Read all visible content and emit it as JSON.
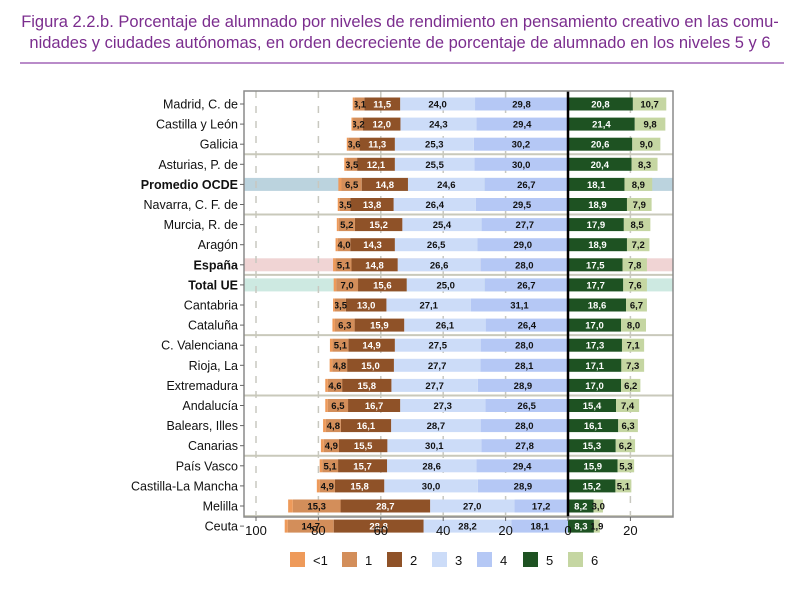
{
  "title_line1": "Figura 2.2.b. Porcentaje de alumnado por niveles de rendimiento en pensamiento creativo en las comu-",
  "title_line2": "nidades y ciudades autónomas, en orden decreciente de porcentaje de alumnado en los niveles 5 y 6",
  "chart_data": {
    "type": "bar",
    "orientation": "horizontal",
    "stacked": "diverging",
    "title": "Figura 2.2.b. Porcentaje de alumnado por niveles de rendimiento en pensamiento creativo en las comunidades y ciudades autónomas, en orden decreciente de porcentaje de alumnado en los niveles 5 y 6",
    "xlabel": "",
    "ylabel": "",
    "xlim": [
      -100,
      33
    ],
    "x_ticks": [
      -100,
      -80,
      -60,
      -40,
      -20,
      0,
      20
    ],
    "x_tick_labels": [
      "100",
      "80",
      "60",
      "40",
      "20",
      "0",
      "20"
    ],
    "grid": "vertical dashed",
    "legend_position": "bottom",
    "legend": [
      {
        "key": "lt1",
        "label": "<1",
        "color": "#EE9A5A",
        "side": "left"
      },
      {
        "key": "l1",
        "label": "1",
        "color": "#D38E5A",
        "side": "left"
      },
      {
        "key": "l2",
        "label": "2",
        "color": "#8F5228",
        "side": "left"
      },
      {
        "key": "l3",
        "label": "3",
        "color": "#CCDCF8",
        "side": "left"
      },
      {
        "key": "l4",
        "label": "4",
        "color": "#B5C8F5",
        "side": "left"
      },
      {
        "key": "l5",
        "label": "5",
        "color": "#1E5222",
        "side": "right"
      },
      {
        "key": "l6",
        "label": "6",
        "color": "#C5D6A2",
        "side": "right"
      }
    ],
    "categories": [
      "Madrid, C. de",
      "Castilla y León",
      "Galicia",
      "Asturias, P. de",
      "Promedio OCDE",
      "Navarra, C. F. de",
      "Murcia, R. de",
      "Aragón",
      "España",
      "Total UE",
      "Cantabria",
      "Cataluña",
      "C. Valenciana",
      "Rioja, La",
      "Extremadura",
      "Andalucía",
      "Balears, Illes",
      "Canarias",
      "País Vasco",
      "Castilla-La Mancha",
      "Melilla",
      "Ceuta"
    ],
    "bold_categories": [
      "Promedio OCDE",
      "España",
      "Total UE"
    ],
    "highlights": [
      {
        "category": "Promedio OCDE",
        "color": "#BBD3DE"
      },
      {
        "category": "España",
        "color": "#F0D4D4"
      },
      {
        "category": "Total UE",
        "color": "#CDE9E1"
      }
    ],
    "group_separators_after": [
      "Galicia",
      "Navarra, C. F. de",
      "España",
      "Cataluña",
      "Extremadura",
      "Canarias",
      "Melilla"
    ],
    "series": [
      {
        "name": "<1",
        "key": "lt1",
        "labeled": false,
        "values_estimated": true,
        "values": [
          0.6,
          0.5,
          0.5,
          0.6,
          1.0,
          0.6,
          0.6,
          0.7,
          0.8,
          0.8,
          0.6,
          0.8,
          0.8,
          0.8,
          0.8,
          0.8,
          0.9,
          0.9,
          0.8,
          0.9,
          1.5,
          1.0
        ]
      },
      {
        "name": "1",
        "key": "l1",
        "values": [
          3.1,
          3.2,
          3.6,
          3.5,
          6.5,
          3.5,
          5.2,
          4.0,
          5.1,
          7.0,
          3.5,
          6.3,
          5.1,
          4.8,
          4.6,
          6.5,
          4.8,
          4.9,
          5.1,
          4.9,
          15.3,
          14.7
        ]
      },
      {
        "name": "2",
        "key": "l2",
        "values": [
          11.5,
          12.0,
          11.3,
          12.1,
          14.8,
          13.8,
          15.2,
          14.3,
          14.8,
          15.6,
          13.0,
          15.9,
          14.9,
          15.0,
          15.8,
          16.7,
          16.1,
          15.5,
          15.7,
          15.8,
          28.7,
          28.8
        ]
      },
      {
        "name": "3",
        "key": "l3",
        "values": [
          24.0,
          24.3,
          25.3,
          25.5,
          24.6,
          26.4,
          25.4,
          26.5,
          26.6,
          25.0,
          27.1,
          26.1,
          27.5,
          27.7,
          27.7,
          27.3,
          28.7,
          30.1,
          28.6,
          30.0,
          27.0,
          28.2
        ]
      },
      {
        "name": "4",
        "key": "l4",
        "values": [
          29.8,
          29.4,
          30.2,
          30.0,
          26.7,
          29.5,
          27.7,
          29.0,
          28.0,
          26.7,
          31.1,
          26.4,
          28.0,
          28.1,
          28.9,
          26.5,
          28.0,
          27.8,
          29.4,
          28.9,
          17.2,
          18.1
        ]
      },
      {
        "name": "5",
        "key": "l5",
        "values": [
          20.8,
          21.4,
          20.6,
          20.4,
          18.1,
          18.9,
          17.9,
          18.9,
          17.5,
          17.7,
          18.6,
          17.0,
          17.3,
          17.1,
          17.0,
          15.4,
          16.1,
          15.3,
          15.9,
          15.2,
          8.2,
          8.3
        ]
      },
      {
        "name": "6",
        "key": "l6",
        "values": [
          10.7,
          9.8,
          9.0,
          8.3,
          8.9,
          7.9,
          8.5,
          7.2,
          7.8,
          7.6,
          6.7,
          8.0,
          7.1,
          7.3,
          6.2,
          7.4,
          6.3,
          6.2,
          5.3,
          5.1,
          3.0,
          1.9
        ]
      }
    ]
  }
}
